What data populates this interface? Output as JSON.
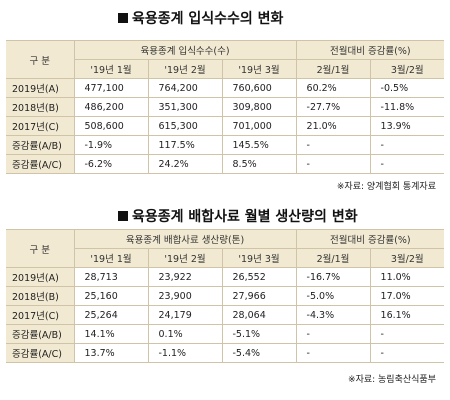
{
  "table1": {
    "title": "육용종계 입식수수의 변화",
    "header_label": "구 분",
    "group_header_left": "육용종계 입식수수(수)",
    "group_header_right": "전월대비 증감률(%)",
    "columns": [
      "'19년 1월",
      "'19년 2월",
      "'19년 3월",
      "2월/1월",
      "3월/2월"
    ],
    "rows": [
      {
        "label": "2019년(A)",
        "cells": [
          "477,100",
          "764,200",
          "760,600",
          "60.2%",
          "-0.5%"
        ]
      },
      {
        "label": "2018년(B)",
        "cells": [
          "486,200",
          "351,300",
          "309,800",
          "-27.7%",
          "-11.8%"
        ]
      },
      {
        "label": "2017년(C)",
        "cells": [
          "508,600",
          "615,300",
          "701,000",
          "21.0%",
          "13.9%"
        ]
      },
      {
        "label": "증감률(A/B)",
        "cells": [
          "-1.9%",
          "117.5%",
          "145.5%",
          "-",
          "-"
        ]
      },
      {
        "label": "증감률(A/C)",
        "cells": [
          "-6.2%",
          "24.2%",
          "8.5%",
          "-",
          "-"
        ]
      }
    ],
    "source": "※자료: 양계협회 통계자료"
  },
  "table2": {
    "title": "육용종계 배합사료 월별 생산량의 변화",
    "header_label": "구 분",
    "group_header_left": "육용종계 배합사료 생산량(톤)",
    "group_header_right": "전월대비 증감률(%)",
    "columns": [
      "'19년 1월",
      "'19년 2월",
      "'19년 3월",
      "2월/1월",
      "3월/2월"
    ],
    "rows": [
      {
        "label": "2019년(A)",
        "cells": [
          "28,713",
          "23,922",
          "26,552",
          "-16.7%",
          "11.0%"
        ]
      },
      {
        "label": "2018년(B)",
        "cells": [
          "25,160",
          "23,900",
          "27,966",
          "-5.0%",
          "17.0%"
        ]
      },
      {
        "label": "2017년(C)",
        "cells": [
          "25,264",
          "24,179",
          "28,064",
          "-4.3%",
          "16.1%"
        ]
      },
      {
        "label": "증감률(A/B)",
        "cells": [
          "14.1%",
          "0.1%",
          "-5.1%",
          "-",
          "-"
        ]
      },
      {
        "label": "증감률(A/C)",
        "cells": [
          "13.7%",
          "-1.1%",
          "-5.4%",
          "-",
          "-"
        ]
      }
    ],
    "source": "※자료: 농림축산식품부"
  }
}
